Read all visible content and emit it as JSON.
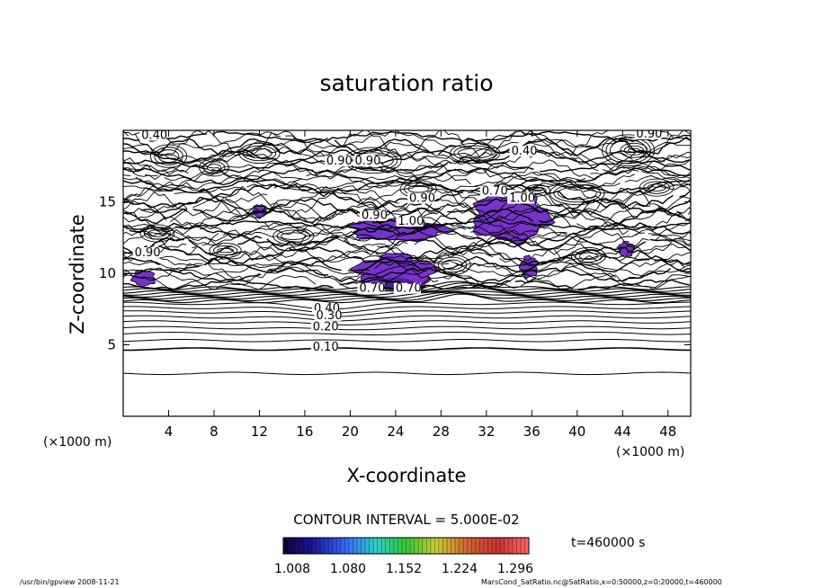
{
  "chart_data": {
    "type": "contour",
    "title": "saturation ratio",
    "xlabel": "X-coordinate",
    "ylabel": "Z-coordinate",
    "x_unit": "(×1000 m)",
    "y_unit": "(×1000 m)",
    "xlim": [
      0,
      50
    ],
    "ylim": [
      0,
      20
    ],
    "x_ticks": [
      4,
      8,
      12,
      16,
      20,
      24,
      28,
      32,
      36,
      40,
      44,
      48
    ],
    "y_ticks": [
      5,
      10,
      15
    ],
    "contour_interval_text": "CONTOUR INTERVAL = 5.000E-02",
    "contour_levels": [
      {
        "value": 0.05,
        "z": 3.0
      },
      {
        "value": 0.1,
        "z": 4.7
      },
      {
        "value": 0.15,
        "z": 5.3
      },
      {
        "value": 0.2,
        "z": 5.8
      },
      {
        "value": 0.25,
        "z": 6.2
      },
      {
        "value": 0.3,
        "z": 6.6
      },
      {
        "value": 0.35,
        "z": 6.95
      },
      {
        "value": 0.4,
        "z": 7.3
      },
      {
        "value": 0.45,
        "z": 7.6
      },
      {
        "value": 0.5,
        "z": 7.9
      }
    ],
    "contour_labels": [
      {
        "text": "0.40",
        "x": 1.6,
        "z": 19.4
      },
      {
        "text": "0.40",
        "x": 34.2,
        "z": 18.3
      },
      {
        "text": "0.90",
        "x": 45.2,
        "z": 19.5
      },
      {
        "text": "0.90",
        "x": 17.9,
        "z": 17.6
      },
      {
        "text": "0.90",
        "x": 20.4,
        "z": 17.6
      },
      {
        "text": "0.90",
        "x": 25.2,
        "z": 15.0
      },
      {
        "text": "0.90",
        "x": 21.0,
        "z": 13.8
      },
      {
        "text": "1.00",
        "x": 24.2,
        "z": 13.4
      },
      {
        "text": "0.70",
        "x": 31.6,
        "z": 15.5
      },
      {
        "text": "1.00",
        "x": 34.0,
        "z": 15.0
      },
      {
        "text": "0.70",
        "x": 24.0,
        "z": 8.7
      },
      {
        "text": "0.70",
        "x": 20.8,
        "z": 8.7
      },
      {
        "text": "0.40",
        "x": 16.8,
        "z": 7.3
      },
      {
        "text": "0.30",
        "x": 17.0,
        "z": 6.8
      },
      {
        "text": "0.20",
        "x": 16.7,
        "z": 6.0
      },
      {
        "text": "0.10",
        "x": 16.7,
        "z": 4.6
      },
      {
        "text": "0.90",
        "x": 1.0,
        "z": 11.2
      }
    ],
    "supersaturated_regions": [
      {
        "name": "central dome",
        "x_range": [
          20.5,
          27.5
        ],
        "z_range": [
          8.8,
          11.3
        ]
      },
      {
        "name": "band near z=13",
        "x_range": [
          20.0,
          28.5
        ],
        "z_range": [
          12.3,
          13.8
        ]
      },
      {
        "name": "upper right patch",
        "x_range": [
          30.8,
          37.5
        ],
        "z_range": [
          12.2,
          15.6
        ]
      },
      {
        "name": "small patch near x=12",
        "x_range": [
          11.4,
          12.6
        ],
        "z_range": [
          13.9,
          14.8
        ]
      },
      {
        "name": "left edge patch",
        "x_range": [
          0.8,
          2.8
        ],
        "z_range": [
          9.1,
          10.2
        ]
      },
      {
        "name": "patch near x=35",
        "x_range": [
          35.0,
          36.5
        ],
        "z_range": [
          9.7,
          11.2
        ]
      },
      {
        "name": "patch near x=44",
        "x_range": [
          43.6,
          45.0
        ],
        "z_range": [
          11.2,
          12.2
        ]
      }
    ],
    "colorbar": {
      "ticks": [
        "1.008",
        "1.080",
        "1.152",
        "1.224",
        "1.296"
      ],
      "colors": [
        "#110033",
        "#1a1a99",
        "#3366ff",
        "#33cccc",
        "#33cc33",
        "#cccc33",
        "#cc6633",
        "#cc3333",
        "#ff6666"
      ]
    },
    "time_label": "t=460000 s",
    "footer_left": "/usr/bin/gpview   2008-11-21",
    "footer_right": "MarsCond_SatRatio.nc@SatRatio,x=0:50000,z=0:20000,t=460000",
    "fill_color": "#7733cc",
    "line_color": "#000000"
  }
}
